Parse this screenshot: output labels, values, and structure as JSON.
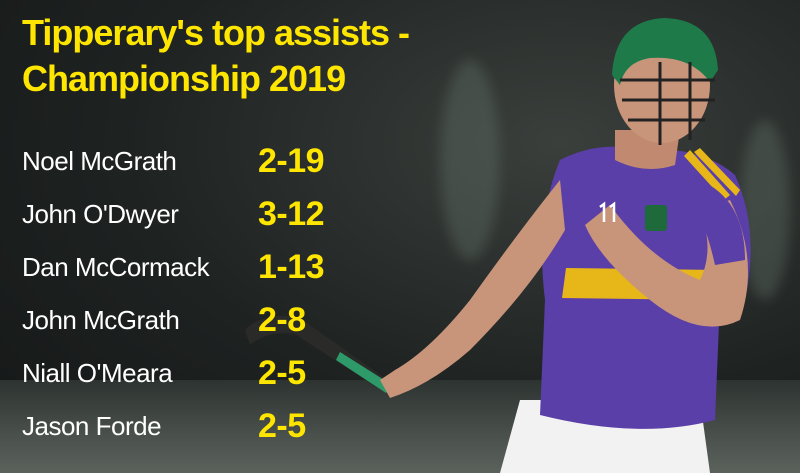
{
  "title": {
    "line1": "Tipperary's top assists -",
    "line2": "Championship 2019"
  },
  "players": [
    {
      "name": "Noel McGrath",
      "score": "2-19"
    },
    {
      "name": "John O'Dwyer",
      "score": "3-12"
    },
    {
      "name": "Dan McCormack",
      "score": "1-13"
    },
    {
      "name": "John McGrath",
      "score": "2-8"
    },
    {
      "name": "Niall O'Meara",
      "score": "2-5"
    },
    {
      "name": "Jason Forde",
      "score": "2-5"
    }
  ],
  "colors": {
    "accent": "#ffe600",
    "jersey": "#5b3fa8",
    "helmet": "#1f7a4a"
  }
}
